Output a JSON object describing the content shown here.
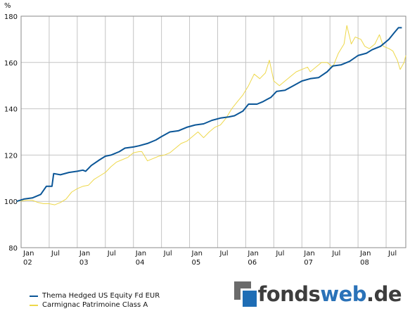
{
  "chart_data": {
    "type": "line",
    "yunit": "%",
    "ylim": [
      80,
      180
    ],
    "yticks": [
      80,
      100,
      120,
      140,
      160,
      180
    ],
    "xlim": [
      2002.0,
      2008.85
    ],
    "xtick_labels": [
      {
        "x": 2002.0,
        "top": "Jan",
        "bottom": "02"
      },
      {
        "x": 2002.5,
        "top": "Jul",
        "bottom": ""
      },
      {
        "x": 2003.0,
        "top": "Jan",
        "bottom": "03"
      },
      {
        "x": 2003.5,
        "top": "Jul",
        "bottom": ""
      },
      {
        "x": 2004.0,
        "top": "Jan",
        "bottom": "04"
      },
      {
        "x": 2004.5,
        "top": "Jul",
        "bottom": ""
      },
      {
        "x": 2005.0,
        "top": "Jan",
        "bottom": "05"
      },
      {
        "x": 2005.5,
        "top": "Jul",
        "bottom": ""
      },
      {
        "x": 2006.0,
        "top": "Jan",
        "bottom": "06"
      },
      {
        "x": 2006.5,
        "top": "Jul",
        "bottom": ""
      },
      {
        "x": 2007.0,
        "top": "Jan",
        "bottom": "07"
      },
      {
        "x": 2007.5,
        "top": "Jul",
        "bottom": ""
      },
      {
        "x": 2008.0,
        "top": "Jan",
        "bottom": "08"
      },
      {
        "x": 2008.5,
        "top": "Jul",
        "bottom": ""
      }
    ],
    "grid": true,
    "series": [
      {
        "name": "Thema Hedged US Equity Fd EUR",
        "color": "#0b5697",
        "points": [
          [
            2001.92,
            100
          ],
          [
            2002.05,
            101
          ],
          [
            2002.2,
            101.5
          ],
          [
            2002.35,
            103
          ],
          [
            2002.45,
            106.5
          ],
          [
            2002.55,
            106.5
          ],
          [
            2002.58,
            112
          ],
          [
            2002.7,
            111.5
          ],
          [
            2002.85,
            112.5
          ],
          [
            2003.0,
            113
          ],
          [
            2003.1,
            113.5
          ],
          [
            2003.15,
            113
          ],
          [
            2003.25,
            115.5
          ],
          [
            2003.4,
            118
          ],
          [
            2003.5,
            119.5
          ],
          [
            2003.6,
            120
          ],
          [
            2003.75,
            121.5
          ],
          [
            2003.85,
            123
          ],
          [
            2004.0,
            123.5
          ],
          [
            2004.1,
            124
          ],
          [
            2004.25,
            125
          ],
          [
            2004.4,
            126.5
          ],
          [
            2004.5,
            128
          ],
          [
            2004.65,
            130
          ],
          [
            2004.8,
            130.5
          ],
          [
            2004.95,
            132
          ],
          [
            2005.1,
            133
          ],
          [
            2005.25,
            133.5
          ],
          [
            2005.4,
            135
          ],
          [
            2005.55,
            136
          ],
          [
            2005.7,
            136.5
          ],
          [
            2005.8,
            137
          ],
          [
            2005.95,
            139
          ],
          [
            2006.05,
            142
          ],
          [
            2006.2,
            142
          ],
          [
            2006.3,
            143
          ],
          [
            2006.45,
            145
          ],
          [
            2006.55,
            147.5
          ],
          [
            2006.7,
            148
          ],
          [
            2006.85,
            150
          ],
          [
            2007.0,
            152
          ],
          [
            2007.15,
            153
          ],
          [
            2007.3,
            153.5
          ],
          [
            2007.45,
            156
          ],
          [
            2007.55,
            158.5
          ],
          [
            2007.7,
            159
          ],
          [
            2007.85,
            160.5
          ],
          [
            2008.0,
            163
          ],
          [
            2008.15,
            164
          ],
          [
            2008.25,
            165.5
          ],
          [
            2008.4,
            167
          ],
          [
            2008.55,
            170
          ],
          [
            2008.65,
            173
          ],
          [
            2008.72,
            175
          ],
          [
            2008.78,
            175
          ]
        ]
      },
      {
        "name": "Carmignac Patrimoine Class A",
        "color": "#eed84a",
        "points": [
          [
            2001.92,
            100
          ],
          [
            2002.1,
            100.5
          ],
          [
            2002.2,
            100.5
          ],
          [
            2002.3,
            99.5
          ],
          [
            2002.4,
            99
          ],
          [
            2002.5,
            99
          ],
          [
            2002.6,
            98.5
          ],
          [
            2002.7,
            99.5
          ],
          [
            2002.8,
            101
          ],
          [
            2002.9,
            104
          ],
          [
            2003.0,
            105.5
          ],
          [
            2003.1,
            106.5
          ],
          [
            2003.2,
            107
          ],
          [
            2003.3,
            109.5
          ],
          [
            2003.4,
            111
          ],
          [
            2003.5,
            112.5
          ],
          [
            2003.6,
            115
          ],
          [
            2003.7,
            117
          ],
          [
            2003.8,
            118
          ],
          [
            2003.9,
            119
          ],
          [
            2004.0,
            121
          ],
          [
            2004.1,
            121.5
          ],
          [
            2004.15,
            121.5
          ],
          [
            2004.25,
            117.5
          ],
          [
            2004.35,
            118.5
          ],
          [
            2004.45,
            119.5
          ],
          [
            2004.55,
            120
          ],
          [
            2004.65,
            121
          ],
          [
            2004.75,
            123
          ],
          [
            2004.85,
            125
          ],
          [
            2004.95,
            126
          ],
          [
            2005.05,
            128
          ],
          [
            2005.15,
            130
          ],
          [
            2005.25,
            127.5
          ],
          [
            2005.35,
            130
          ],
          [
            2005.45,
            132
          ],
          [
            2005.55,
            133
          ],
          [
            2005.65,
            136
          ],
          [
            2005.75,
            140
          ],
          [
            2005.85,
            143
          ],
          [
            2005.95,
            146
          ],
          [
            2006.05,
            150
          ],
          [
            2006.15,
            155
          ],
          [
            2006.25,
            153
          ],
          [
            2006.35,
            155.5
          ],
          [
            2006.42,
            161
          ],
          [
            2006.5,
            152
          ],
          [
            2006.6,
            150
          ],
          [
            2006.7,
            152
          ],
          [
            2006.8,
            154
          ],
          [
            2006.9,
            156
          ],
          [
            2007.0,
            157
          ],
          [
            2007.1,
            158
          ],
          [
            2007.15,
            156
          ],
          [
            2007.25,
            158
          ],
          [
            2007.35,
            160
          ],
          [
            2007.45,
            160
          ],
          [
            2007.55,
            158
          ],
          [
            2007.65,
            164
          ],
          [
            2007.75,
            168
          ],
          [
            2007.8,
            176
          ],
          [
            2007.88,
            168
          ],
          [
            2007.95,
            171
          ],
          [
            2008.05,
            170
          ],
          [
            2008.12,
            167
          ],
          [
            2008.2,
            166
          ],
          [
            2008.3,
            168
          ],
          [
            2008.38,
            172
          ],
          [
            2008.45,
            167
          ],
          [
            2008.55,
            166
          ],
          [
            2008.62,
            165
          ],
          [
            2008.7,
            161
          ],
          [
            2008.75,
            157
          ],
          [
            2008.82,
            160
          ],
          [
            2008.85,
            163
          ]
        ]
      }
    ]
  },
  "logo": {
    "part1": "fonds",
    "part2": "web",
    "part3": ".de"
  }
}
